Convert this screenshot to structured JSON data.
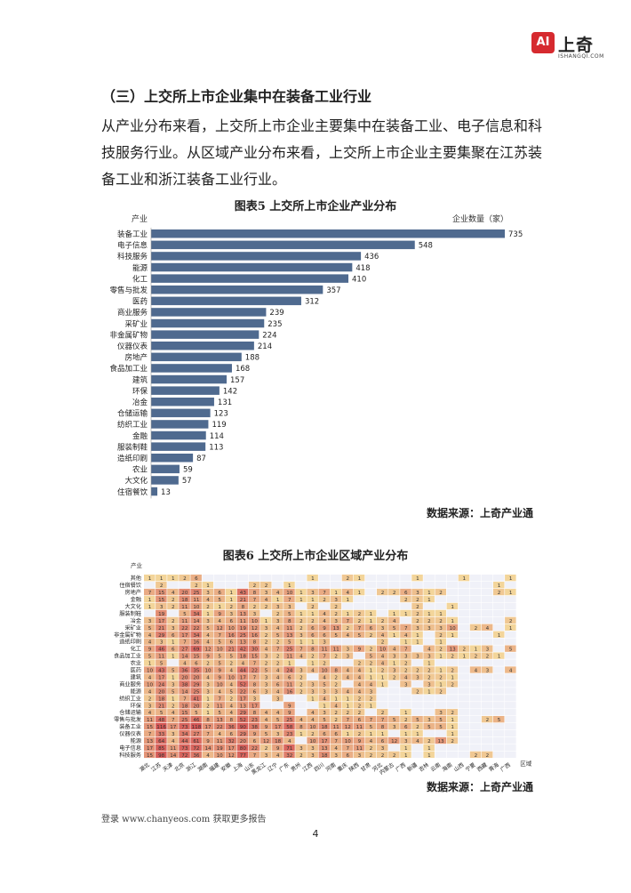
{
  "header": {
    "logo_mark": "AI",
    "logo_text": "上奇",
    "logo_sub": "ISHANGQI.COM"
  },
  "section_title": "（三）上交所上市企业集中在装备工业行业",
  "paragraph": "从产业分布来看，上交所上市企业主要集中在装备工业、电子信息和科技服务行业。从区域产业分布来看，上交所上市企业主要集聚在江苏装备工业和浙江装备工业行业。",
  "figure5": {
    "title": "图表5  上交所上市企业产业分布",
    "source": "数据来源：上奇产业通",
    "chart_data": {
      "type": "bar",
      "orientation": "horizontal",
      "ylabel": "产业",
      "xlabel": "企业数量（家）",
      "bar_color": "#4f6a8f",
      "categories": [
        "装备工业",
        "电子信息",
        "科技服务",
        "能源",
        "化工",
        "零售与批发",
        "医药",
        "商业服务",
        "采矿业",
        "非金属矿物",
        "仪器仪表",
        "房地产",
        "食品加工业",
        "建筑",
        "环保",
        "冶金",
        "仓储运输",
        "纺织工业",
        "金融",
        "服装制鞋",
        "造纸印刷",
        "农业",
        "大文化",
        "住宿餐饮"
      ],
      "values": [
        735,
        548,
        436,
        418,
        410,
        357,
        312,
        239,
        235,
        224,
        214,
        188,
        168,
        157,
        142,
        131,
        123,
        119,
        114,
        113,
        87,
        59,
        57,
        13
      ]
    }
  },
  "figure6": {
    "title": "图表6  上交所上市企业区域产业分布",
    "source": "数据来源：上奇产业通",
    "chart_data": {
      "type": "heatmap",
      "ylabel": "产业",
      "xlabel": "区域",
      "rows": [
        "其他",
        "住宿餐饮",
        "房地产",
        "金融",
        "大文化",
        "服装制鞋",
        "冶金",
        "采矿业",
        "非金属矿物",
        "造纸印刷",
        "化工",
        "食品加工业",
        "农业",
        "医药",
        "建筑",
        "商业服务",
        "能源",
        "纺织工业",
        "环保",
        "仓储运输",
        "零售与批发",
        "装备工业",
        "仪器仪表",
        "能源",
        "电子信息",
        "科技服务"
      ],
      "columns": [
        "湖北",
        "江苏",
        "天津",
        "北京",
        "浙江",
        "湖南",
        "福建",
        "安徽",
        "上海",
        "山东",
        "黑龙江",
        "辽宁",
        "广东",
        "贵州",
        "江西",
        "四川",
        "河南",
        "重庆",
        "陕西",
        "甘肃",
        "河北",
        "内蒙古",
        "广西",
        "新疆",
        "吉林",
        "云南",
        "海南",
        "山西",
        "宁夏",
        "西藏",
        "青海",
        "广西"
      ],
      "values": [
        [
          1,
          1,
          1,
          2,
          6,
          null,
          null,
          null,
          null,
          null,
          null,
          null,
          null,
          null,
          1,
          null,
          null,
          2,
          1,
          null,
          null,
          null,
          null,
          1,
          null,
          null,
          null,
          1,
          null,
          null,
          null,
          1
        ],
        [
          null,
          2,
          null,
          null,
          2,
          1,
          null,
          null,
          null,
          2,
          2,
          null,
          1,
          null,
          null,
          null,
          null,
          null,
          null,
          null,
          null,
          null,
          null,
          null,
          null,
          null,
          null,
          null,
          null,
          null,
          1,
          null
        ],
        [
          7,
          15,
          4,
          20,
          25,
          3,
          6,
          1,
          43,
          8,
          3,
          4,
          10,
          1,
          3,
          7,
          1,
          4,
          1,
          null,
          2,
          2,
          6,
          3,
          1,
          2,
          null,
          null,
          null,
          null,
          2,
          1
        ],
        [
          1,
          15,
          2,
          18,
          11,
          4,
          5,
          1,
          21,
          7,
          4,
          1,
          7,
          1,
          1,
          2,
          3,
          1,
          null,
          null,
          null,
          null,
          2,
          2,
          1,
          null,
          null,
          null,
          null,
          null,
          null,
          null
        ],
        [
          1,
          3,
          2,
          11,
          10,
          2,
          1,
          2,
          8,
          2,
          2,
          3,
          3,
          null,
          2,
          null,
          2,
          null,
          null,
          null,
          null,
          null,
          null,
          2,
          null,
          null,
          1,
          null,
          null,
          null,
          null,
          null
        ],
        [
          null,
          19,
          null,
          5,
          34,
          1,
          9,
          3,
          13,
          3,
          null,
          2,
          5,
          1,
          1,
          4,
          2,
          1,
          2,
          1,
          null,
          1,
          1,
          2,
          1,
          1,
          null,
          null,
          null,
          null,
          null,
          null
        ],
        [
          3,
          17,
          2,
          11,
          14,
          3,
          4,
          6,
          11,
          10,
          1,
          3,
          8,
          2,
          2,
          4,
          3,
          7,
          2,
          1,
          2,
          4,
          null,
          2,
          2,
          2,
          1,
          null,
          null,
          null,
          null,
          2
        ],
        [
          5,
          21,
          3,
          22,
          22,
          5,
          12,
          10,
          19,
          12,
          3,
          4,
          11,
          2,
          6,
          9,
          13,
          2,
          7,
          6,
          3,
          5,
          7,
          3,
          3,
          3,
          10,
          null,
          2,
          4,
          null,
          1
        ],
        [
          4,
          29,
          6,
          17,
          34,
          4,
          7,
          16,
          25,
          16,
          2,
          5,
          13,
          3,
          6,
          6,
          5,
          4,
          5,
          2,
          4,
          1,
          4,
          1,
          null,
          2,
          1,
          null,
          null,
          null,
          1,
          null
        ],
        [
          4,
          3,
          1,
          7,
          16,
          4,
          5,
          6,
          13,
          8,
          2,
          2,
          5,
          1,
          1,
          3,
          null,
          null,
          null,
          null,
          2,
          null,
          1,
          1,
          null,
          1,
          null,
          null,
          null,
          null,
          null,
          null
        ],
        [
          9,
          46,
          6,
          27,
          69,
          12,
          10,
          21,
          42,
          30,
          4,
          7,
          25,
          7,
          8,
          11,
          11,
          3,
          9,
          2,
          10,
          4,
          7,
          null,
          4,
          2,
          13,
          2,
          1,
          3,
          null,
          5
        ],
        [
          5,
          11,
          1,
          14,
          15,
          9,
          5,
          5,
          18,
          15,
          3,
          2,
          11,
          4,
          2,
          7,
          2,
          3,
          null,
          5,
          4,
          3,
          3,
          3,
          3,
          1,
          2,
          1,
          2,
          2,
          1,
          null
        ],
        [
          1,
          5,
          null,
          4,
          6,
          2,
          5,
          2,
          4,
          7,
          2,
          2,
          1,
          null,
          1,
          2,
          null,
          null,
          2,
          2,
          4,
          1,
          2,
          null,
          1,
          null,
          null,
          null,
          null,
          null,
          null,
          null
        ],
        [
          10,
          43,
          5,
          36,
          35,
          10,
          9,
          4,
          44,
          22,
          5,
          4,
          24,
          3,
          4,
          10,
          8,
          4,
          4,
          1,
          2,
          3,
          2,
          2,
          2,
          1,
          2,
          null,
          4,
          3,
          null,
          4
        ],
        [
          4,
          17,
          1,
          20,
          20,
          4,
          9,
          10,
          17,
          7,
          3,
          4,
          6,
          2,
          null,
          4,
          2,
          4,
          4,
          1,
          1,
          2,
          4,
          3,
          2,
          2,
          1,
          null,
          null,
          null,
          null,
          null
        ],
        [
          10,
          24,
          3,
          38,
          29,
          3,
          10,
          4,
          52,
          8,
          3,
          6,
          11,
          2,
          3,
          5,
          2,
          null,
          4,
          4,
          1,
          null,
          3,
          null,
          3,
          1,
          2,
          null,
          null,
          null,
          null,
          null
        ],
        [
          4,
          20,
          5,
          14,
          25,
          3,
          4,
          5,
          22,
          6,
          3,
          4,
          16,
          2,
          3,
          3,
          3,
          4,
          4,
          3,
          null,
          null,
          null,
          2,
          1,
          2,
          null,
          null,
          null,
          null,
          null,
          null
        ],
        [
          2,
          18,
          1,
          7,
          41,
          1,
          7,
          2,
          17,
          3,
          null,
          3,
          null,
          null,
          1,
          4,
          1,
          1,
          2,
          2,
          null,
          null,
          null,
          null,
          null,
          null,
          null,
          null,
          null,
          null,
          null,
          null
        ],
        [
          3,
          21,
          2,
          18,
          20,
          2,
          11,
          4,
          13,
          17,
          null,
          null,
          9,
          null,
          null,
          1,
          4,
          1,
          2,
          1,
          null,
          null,
          null,
          null,
          null,
          null,
          null,
          null,
          null,
          null,
          null,
          null
        ],
        [
          4,
          5,
          4,
          15,
          5,
          1,
          5,
          4,
          29,
          8,
          4,
          4,
          9,
          null,
          4,
          3,
          2,
          2,
          2,
          null,
          2,
          null,
          1,
          null,
          null,
          3,
          2,
          null,
          null,
          null,
          null,
          null
        ],
        [
          11,
          48,
          7,
          25,
          46,
          8,
          13,
          8,
          52,
          23,
          4,
          5,
          25,
          4,
          4,
          5,
          2,
          7,
          6,
          7,
          7,
          5,
          2,
          5,
          3,
          5,
          1,
          null,
          null,
          2,
          5,
          null
        ],
        [
          15,
          116,
          17,
          73,
          118,
          17,
          22,
          36,
          90,
          38,
          9,
          17,
          58,
          8,
          10,
          18,
          11,
          12,
          11,
          5,
          8,
          3,
          6,
          2,
          5,
          5,
          1,
          null,
          null,
          null,
          null,
          null
        ],
        [
          7,
          33,
          3,
          34,
          27,
          7,
          4,
          6,
          29,
          9,
          5,
          3,
          23,
          1,
          2,
          6,
          6,
          1,
          2,
          1,
          1,
          null,
          1,
          1,
          null,
          null,
          1,
          null,
          null,
          null,
          null,
          null
        ],
        [
          13,
          64,
          4,
          44,
          61,
          9,
          11,
          32,
          20,
          6,
          12,
          18,
          4,
          null,
          10,
          17,
          7,
          10,
          9,
          4,
          6,
          12,
          3,
          4,
          2,
          13,
          2,
          null,
          null,
          null,
          null,
          null
        ],
        [
          17,
          85,
          11,
          73,
          72,
          14,
          19,
          17,
          80,
          22,
          2,
          9,
          71,
          3,
          3,
          13,
          4,
          7,
          11,
          2,
          3,
          null,
          1,
          null,
          1,
          null,
          null,
          null,
          null,
          null,
          null,
          null
        ],
        [
          15,
          98,
          14,
          72,
          36,
          4,
          10,
          12,
          77,
          7,
          3,
          4,
          32,
          2,
          3,
          18,
          3,
          6,
          3,
          2,
          2,
          2,
          1,
          null,
          1,
          null,
          null,
          null,
          2,
          2,
          null,
          null
        ]
      ]
    }
  },
  "footer": {
    "promo": "登录 www.chanyeos.com 获取更多报告",
    "page_number": "4"
  }
}
